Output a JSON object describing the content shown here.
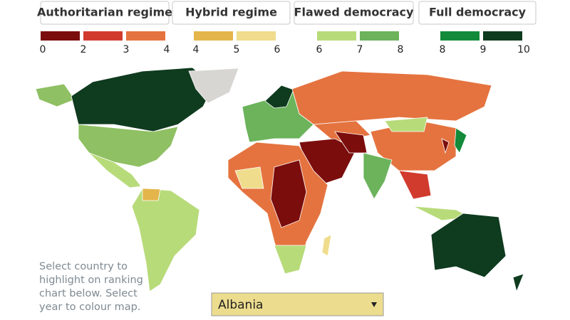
{
  "legend": {
    "groups": [
      {
        "label": "Authoritarian regime",
        "colors": [
          "#7b0d0d",
          "#d13b2e",
          "#e5733f"
        ],
        "ticks": [
          0,
          2,
          3,
          4
        ]
      },
      {
        "label": "Hybrid regime",
        "colors": [
          "#e3b54a",
          "#efdc8c"
        ],
        "ticks": [
          4,
          5,
          6
        ]
      },
      {
        "label": "Flawed democracy",
        "colors": [
          "#b8db7a",
          "#6cb35c"
        ],
        "ticks": [
          6,
          7,
          8
        ]
      },
      {
        "label": "Full democracy",
        "colors": [
          "#138a3a",
          "#0f3b1f"
        ],
        "ticks": [
          8,
          9,
          10
        ]
      }
    ]
  },
  "instructions": [
    "Select country to",
    "highlight on ranking",
    "chart below. Select",
    "year to colour map."
  ],
  "selector": {
    "selected": "Albania"
  }
}
